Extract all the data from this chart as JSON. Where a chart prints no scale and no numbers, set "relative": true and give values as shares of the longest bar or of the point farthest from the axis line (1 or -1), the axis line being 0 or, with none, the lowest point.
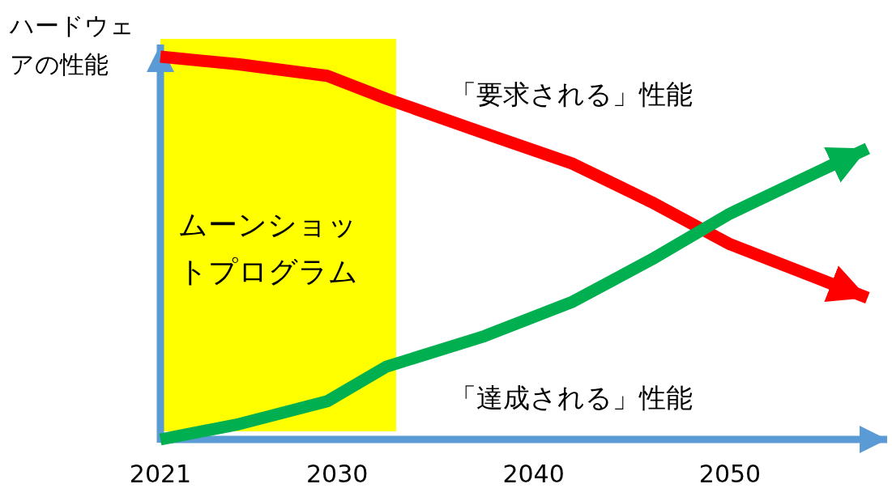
{
  "chart_data": {
    "type": "line",
    "relative": true,
    "ylabel": "ハードウェアの性能",
    "x": [
      2021,
      2025,
      2029.5,
      2032.5,
      2037.5,
      2042,
      2046,
      2050,
      2054.5,
      2057
    ],
    "xlim": [
      2021,
      2058
    ],
    "xticks": [
      2021,
      2030,
      2040,
      2050
    ],
    "line_style": "solid",
    "series": [
      {
        "name": "「要求される」性能",
        "color": "#ff0000",
        "values": [
          1.0,
          0.98,
          0.95,
          0.89,
          0.8,
          0.72,
          0.62,
          0.51,
          0.42,
          0.37
        ]
      },
      {
        "name": "「達成される」性能",
        "color": "#00b050",
        "values": [
          0.0,
          0.04,
          0.1,
          0.19,
          0.27,
          0.36,
          0.47,
          0.59,
          0.7,
          0.76
        ]
      }
    ],
    "bands": [
      {
        "axis": "x",
        "from": 2021,
        "to": 2033,
        "label": "ムーンショットプログラム",
        "color": "#ffff00"
      }
    ]
  }
}
